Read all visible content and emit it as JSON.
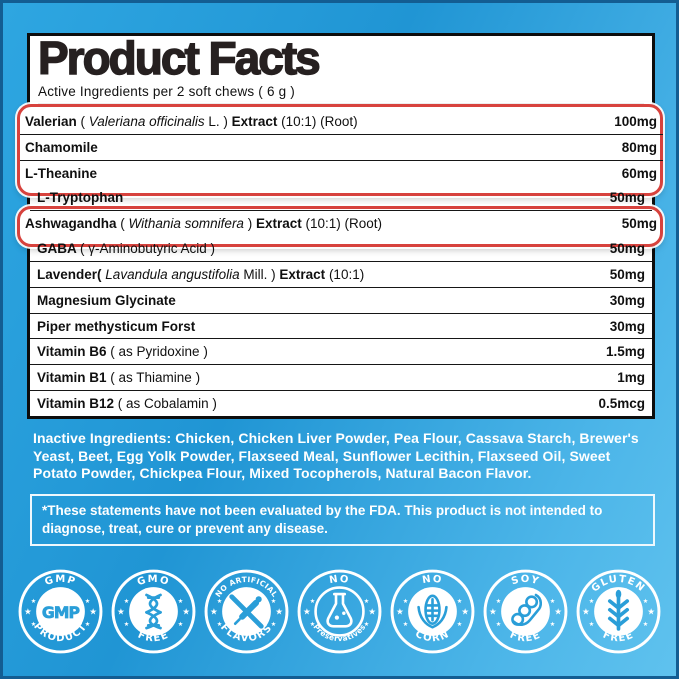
{
  "colors": {
    "background_blue": "#2A9FD9",
    "accent_red": "#D7423D",
    "badge_blue": "#2A9ED8",
    "panel_border": "#0D0D0D",
    "text_white": "#FFFFFF"
  },
  "label": {
    "title": "Product Facts",
    "subtitle": "Active Ingredients per 2 soft chews ( 6 g )"
  },
  "ingredients": [
    {
      "parts": [
        {
          "t": "Valerian ",
          "s": "b"
        },
        {
          "t": "( ",
          "s": "n"
        },
        {
          "t": "Valeriana officinalis",
          "s": "i"
        },
        {
          "t": " L. ) ",
          "s": "n"
        },
        {
          "t": "Extract",
          "s": "b"
        },
        {
          "t": " (10:1) (Root)",
          "s": "n"
        }
      ],
      "amount": "100mg",
      "highlighted": true
    },
    {
      "parts": [
        {
          "t": "Chamomile",
          "s": "b"
        }
      ],
      "amount": "80mg",
      "highlighted": true
    },
    {
      "parts": [
        {
          "t": "L-Theanine",
          "s": "b"
        }
      ],
      "amount": "60mg",
      "highlighted": true
    },
    {
      "parts": [
        {
          "t": "L-Tryptophan",
          "s": "b"
        }
      ],
      "amount": "50mg",
      "highlighted": false
    },
    {
      "parts": [
        {
          "t": "Ashwagandha ",
          "s": "b"
        },
        {
          "t": "( ",
          "s": "n"
        },
        {
          "t": "Withania somnifera",
          "s": "i"
        },
        {
          "t": " ) ",
          "s": "n"
        },
        {
          "t": "Extract",
          "s": "b"
        },
        {
          "t": " (10:1) (Root)",
          "s": "n"
        }
      ],
      "amount": "50mg",
      "highlighted": true
    },
    {
      "parts": [
        {
          "t": "GABA ",
          "s": "b"
        },
        {
          "t": "( γ-Aminobutyric Acid )",
          "s": "n"
        }
      ],
      "amount": "50mg",
      "highlighted": false
    },
    {
      "parts": [
        {
          "t": "Lavender(",
          "s": "b"
        },
        {
          "t": " ",
          "s": "n"
        },
        {
          "t": "Lavandula angustifolia",
          "s": "i"
        },
        {
          "t": " Mill. ) ",
          "s": "n"
        },
        {
          "t": "Extract",
          "s": "b"
        },
        {
          "t": " (10:1)",
          "s": "n"
        }
      ],
      "amount": "50mg",
      "highlighted": false
    },
    {
      "parts": [
        {
          "t": "Magnesium Glycinate",
          "s": "b"
        }
      ],
      "amount": "30mg",
      "highlighted": false
    },
    {
      "parts": [
        {
          "t": "Piper methysticum Forst",
          "s": "b"
        }
      ],
      "amount": "30mg",
      "highlighted": false
    },
    {
      "parts": [
        {
          "t": "Vitamin B6 ",
          "s": "b"
        },
        {
          "t": "( as Pyridoxine )",
          "s": "n"
        }
      ],
      "amount": "1.5mg",
      "highlighted": false
    },
    {
      "parts": [
        {
          "t": "Vitamin B1 ",
          "s": "b"
        },
        {
          "t": "( as Thiamine )",
          "s": "n"
        }
      ],
      "amount": "1mg",
      "highlighted": false
    },
    {
      "parts": [
        {
          "t": "Vitamin B12 ",
          "s": "b"
        },
        {
          "t": "( as Cobalamin )",
          "s": "n"
        }
      ],
      "amount": "0.5mcg",
      "highlighted": false
    }
  ],
  "inactive": {
    "text": "Inactive Ingredients: Chicken, Chicken Liver Powder, Pea Flour, Cassava Starch, Brewer's Yeast, Beet, Egg Yolk Powder, Flaxseed Meal, Sunflower Lecithin, Flaxseed Oil, Sweet Potato Powder, Chickpea Flour, Mixed Tocopherols, Natural Bacon Flavor."
  },
  "disclaimer": {
    "text": "*These statements have not been evaluated by the FDA. This product is not intended to diagnose, treat, cure or prevent any disease."
  },
  "badges": [
    {
      "top": "GMP",
      "bottom": "PRODUCT",
      "center": "GMP",
      "icon": "gmp-seal-icon",
      "disc": "filled"
    },
    {
      "top": "GMO",
      "bottom": "FREE",
      "icon": "dna-icon",
      "disc": "filled"
    },
    {
      "top": "NO ARTIFICIAL",
      "bottom": "FLAVORS",
      "icon": "no-artificial-flavors-icon",
      "disc": "filled"
    },
    {
      "top": "NO",
      "bottom": "Preservatives",
      "icon": "no-preservatives-flask-icon",
      "disc": "outline"
    },
    {
      "top": "NO",
      "bottom": "CORN",
      "icon": "corn-icon",
      "disc": "filled"
    },
    {
      "top": "SOY",
      "bottom": "FREE",
      "icon": "soybean-icon",
      "disc": "filled"
    },
    {
      "top": "GLUTEN",
      "bottom": "FREE",
      "icon": "wheat-icon",
      "disc": "filled"
    }
  ]
}
